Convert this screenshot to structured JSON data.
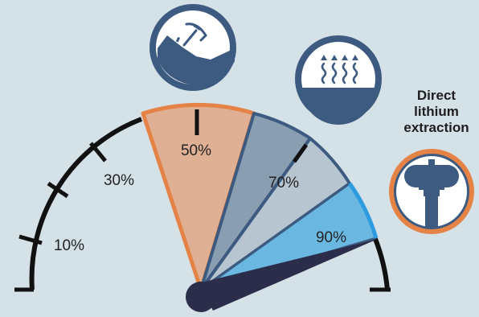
{
  "gauge": {
    "ticks": [
      "10%",
      "30%",
      "50%",
      "70%",
      "90%"
    ],
    "needle_value": 0.97
  },
  "segments": [
    {
      "name": "mining",
      "value_label": "50%",
      "color": "#dfb094",
      "border": "#e58346"
    },
    {
      "name": "evaporation",
      "value_label": "70%",
      "color": "#8a9eb2",
      "border": "#3d5a80"
    },
    {
      "name": "evaporation-light",
      "value_label": "",
      "color": "#b7c5d0",
      "border": "#3d5a80"
    },
    {
      "name": "direct-lithium-extraction",
      "value_label": "90%",
      "color": "#6ab8e2",
      "border": "#2e9be0"
    }
  ],
  "icons": [
    {
      "name": "mining-pickaxe-icon",
      "highlighted": false
    },
    {
      "name": "evaporation-pond-icon",
      "highlighted": false
    },
    {
      "name": "extraction-tank-icon",
      "highlighted": true
    }
  ],
  "labels": {
    "dle_line1": "Direct",
    "dle_line2": "lithium",
    "dle_line3": "extraction"
  },
  "colors": {
    "background": "#d4e1e7",
    "icon_navy": "#3d5a80",
    "accent_orange": "#e58346",
    "needle": "#2b2d4a"
  }
}
